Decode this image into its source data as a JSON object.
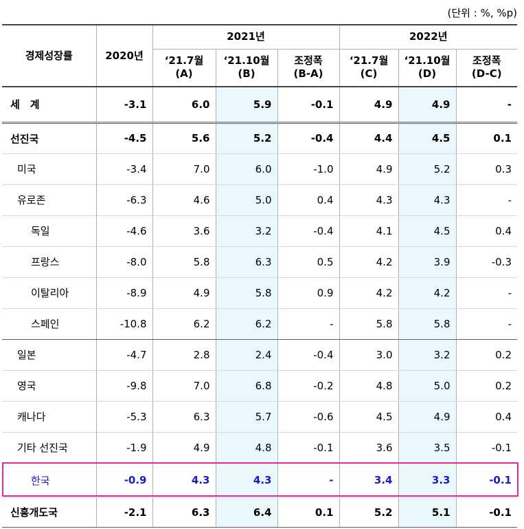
{
  "unit": "(단위 : %, %p)",
  "table": {
    "header": {
      "label": "경제성장률",
      "base": "2020년",
      "groups": [
        "2021년",
        "2022년"
      ],
      "columns": [
        "‘21.7월\n(A)",
        "‘21.10월\n(B)",
        "조정폭\n(B-A)",
        "‘21.7월\n(C)",
        "‘21.10월\n(D)",
        "조정폭\n(D-C)"
      ]
    },
    "rows": [
      [
        "세　계",
        "-3.1",
        "6.0",
        "5.9",
        "-0.1",
        "4.9",
        "4.9",
        "-"
      ],
      [
        "선진국",
        "-4.5",
        "5.6",
        "5.2",
        "-0.4",
        "4.4",
        "4.5",
        "0.1"
      ],
      [
        "미국",
        "-3.4",
        "7.0",
        "6.0",
        "-1.0",
        "4.9",
        "5.2",
        "0.3"
      ],
      [
        "유로존",
        "-6.3",
        "4.6",
        "5.0",
        "0.4",
        "4.3",
        "4.3",
        "-"
      ],
      [
        "독일",
        "-4.6",
        "3.6",
        "3.2",
        "-0.4",
        "4.1",
        "4.5",
        "0.4"
      ],
      [
        "프랑스",
        "-8.0",
        "5.8",
        "6.3",
        "0.5",
        "4.2",
        "3.9",
        "-0.3"
      ],
      [
        "이탈리아",
        "-8.9",
        "4.9",
        "5.8",
        "0.9",
        "4.2",
        "4.2",
        "-"
      ],
      [
        "스페인",
        "-10.8",
        "6.2",
        "6.2",
        "-",
        "5.8",
        "5.8",
        "-"
      ],
      [
        "일본",
        "-4.7",
        "2.8",
        "2.4",
        "-0.4",
        "3.0",
        "3.2",
        "0.2"
      ],
      [
        "영국",
        "-9.8",
        "7.0",
        "6.8",
        "-0.2",
        "4.8",
        "5.0",
        "0.2"
      ],
      [
        "캐나다",
        "-5.3",
        "6.3",
        "5.7",
        "-0.6",
        "4.5",
        "4.9",
        "0.4"
      ],
      [
        "기타 선진국",
        "-1.9",
        "4.9",
        "4.8",
        "-0.1",
        "3.6",
        "3.5",
        "-0.1"
      ],
      [
        "한국",
        "-0.9",
        "4.3",
        "4.3",
        "-",
        "3.4",
        "3.3",
        "-0.1"
      ],
      [
        "신흥개도국",
        "-2.1",
        "6.3",
        "6.4",
        "0.1",
        "5.2",
        "5.1",
        "-0.1"
      ]
    ]
  }
}
